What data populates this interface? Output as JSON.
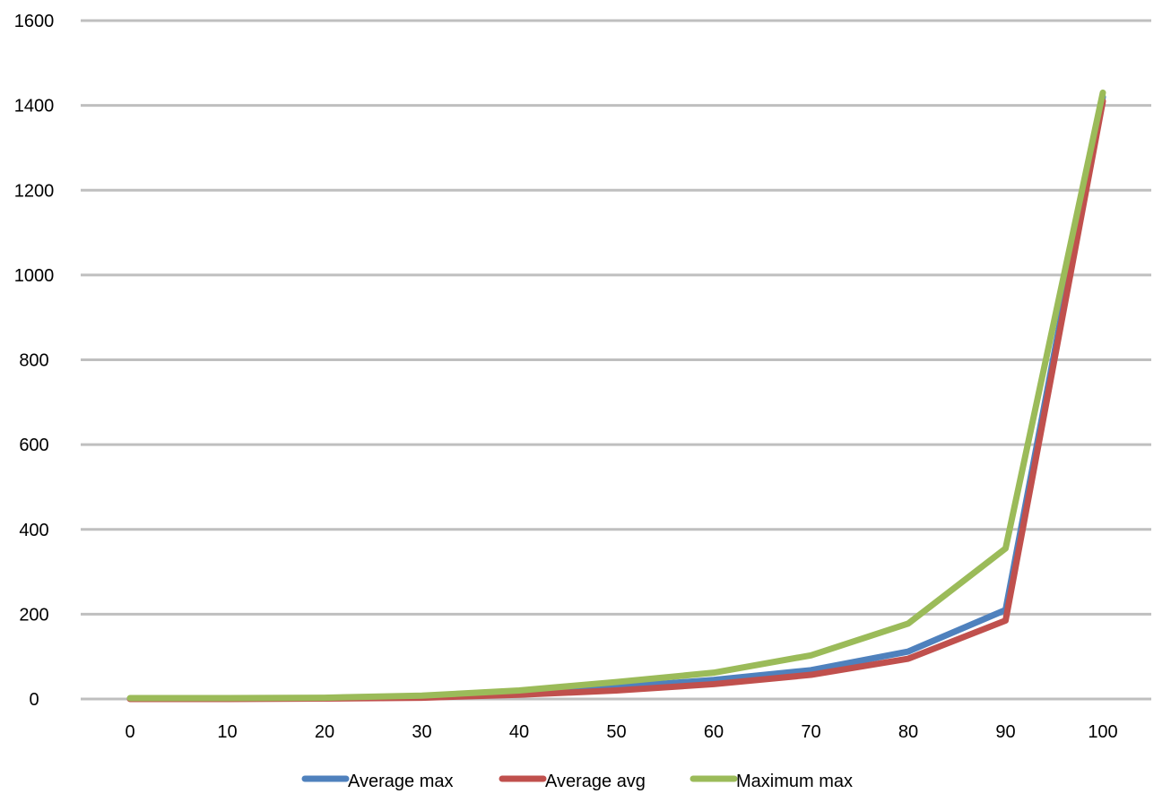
{
  "chart_data": {
    "type": "line",
    "title": "",
    "xlabel": "",
    "ylabel": "",
    "x": [
      0,
      10,
      20,
      30,
      40,
      50,
      60,
      70,
      80,
      90,
      100
    ],
    "x_tick_labels": [
      "0",
      "10",
      "20",
      "30",
      "40",
      "50",
      "60",
      "70",
      "80",
      "90",
      "100"
    ],
    "y_tick_labels": [
      "0",
      "200",
      "400",
      "600",
      "800",
      "1000",
      "1200",
      "1400",
      "1600"
    ],
    "ylim": [
      0,
      1600
    ],
    "grid": "horizontal",
    "legend_position": "bottom",
    "series": [
      {
        "name": "Average max",
        "color": "#4f81bd",
        "values": [
          1,
          1,
          2,
          5,
          15,
          28,
          45,
          68,
          112,
          210,
          1420
        ]
      },
      {
        "name": "Average avg",
        "color": "#c0504d",
        "values": [
          0,
          0,
          1,
          3,
          10,
          20,
          35,
          57,
          95,
          185,
          1410
        ]
      },
      {
        "name": "Maximum max",
        "color": "#9bbb59",
        "values": [
          2,
          2,
          3,
          8,
          20,
          40,
          62,
          103,
          178,
          355,
          1430
        ]
      }
    ]
  }
}
